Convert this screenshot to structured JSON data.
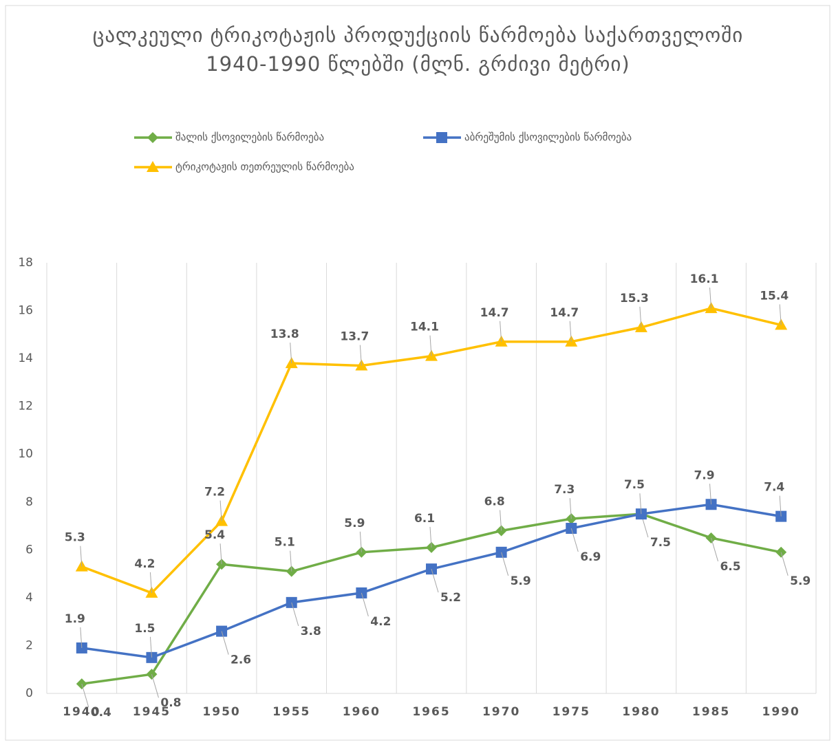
{
  "chart_data": {
    "type": "line",
    "title": "ცალკეული ტრიკოტაჟის პროდუქციის წარმოება საქართველოში 1940-1990 წლებში (მლნ. გრძივი მეტრი)",
    "categories": [
      "1940",
      "1945",
      "1950",
      "1955",
      "1960",
      "1965",
      "1970",
      "1975",
      "1980",
      "1985",
      "1990"
    ],
    "series": [
      {
        "name": "შალის ქსოვილების წარმოება",
        "color": "#70ad47",
        "marker": "diamond",
        "values": [
          0.4,
          0.8,
          5.4,
          5.1,
          5.9,
          6.1,
          6.8,
          7.3,
          7.5,
          6.5,
          5.9
        ]
      },
      {
        "name": "აბრეშუმის ქსოვილების წარმოება",
        "color": "#4472c4",
        "marker": "square",
        "values": [
          1.9,
          1.5,
          2.6,
          3.8,
          4.2,
          5.2,
          5.9,
          6.9,
          7.5,
          7.9,
          7.4
        ]
      },
      {
        "name": "ტრიკოტაჟის თეთრეულის წარმოება",
        "color": "#ffc000",
        "marker": "triangle",
        "values": [
          5.3,
          4.2,
          7.2,
          13.8,
          13.7,
          14.1,
          14.7,
          14.7,
          15.3,
          16.1,
          15.4
        ]
      }
    ],
    "ylim": [
      0,
      18
    ],
    "yticks": [
      0,
      2,
      4,
      6,
      8,
      10,
      12,
      14,
      16,
      18
    ],
    "grid": true,
    "legend": "top"
  }
}
